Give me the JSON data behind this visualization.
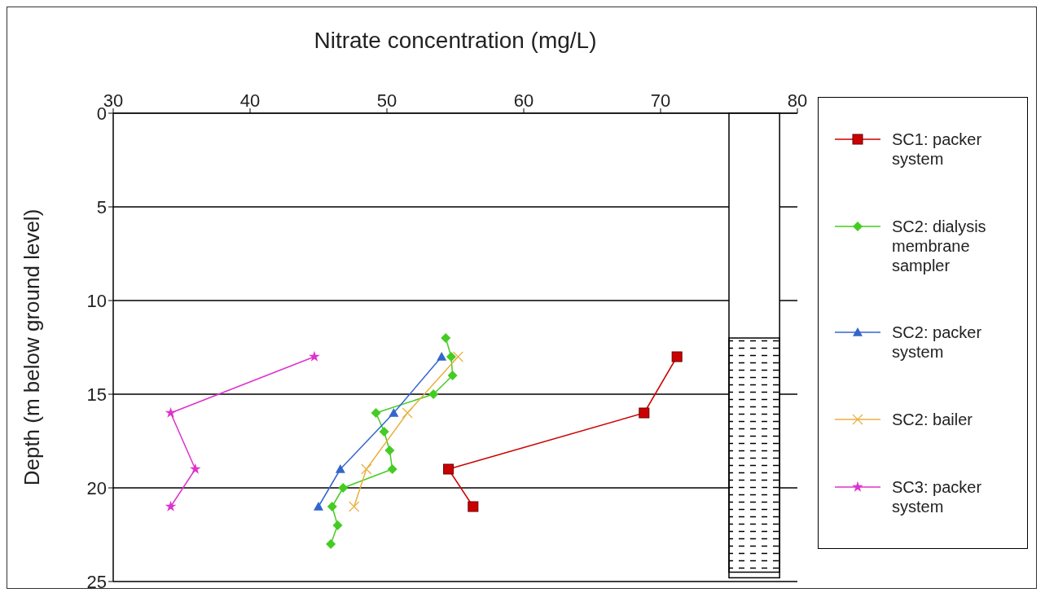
{
  "chart_data": {
    "type": "line",
    "xlabel": "Nitrate concentration (mg/L)",
    "ylabel": "Depth (m below ground level)",
    "xlim": [
      30,
      80
    ],
    "xticks": [
      30,
      40,
      50,
      60,
      70,
      80
    ],
    "ylim": [
      25,
      0
    ],
    "yticks": [
      0,
      5,
      10,
      15,
      20,
      25
    ],
    "grid": "y",
    "legend": "right",
    "bands": [
      {
        "axis": "y",
        "from": 0,
        "to": 24.8,
        "color": "#ffffff"
      },
      {
        "axis": "y",
        "from": 12,
        "to": 24.5,
        "color": "#000000"
      }
    ],
    "series": [
      {
        "name": "SC1: packer system",
        "color": "#cc0000",
        "marker": "square",
        "x": [
          71.2,
          68.8,
          54.5,
          56.3
        ],
        "values": [
          13,
          16,
          19,
          21
        ]
      },
      {
        "name": "SC2: dialysis membrane sampler",
        "color": "#44cc22",
        "marker": "diamond",
        "x": [
          54.3,
          54.7,
          54.8,
          53.4,
          49.2,
          49.8,
          50.2,
          50.4,
          46.8,
          46.0,
          46.4,
          45.9
        ],
        "values": [
          12,
          13,
          14,
          15,
          16,
          17,
          18,
          19,
          20,
          21,
          22,
          23
        ]
      },
      {
        "name": "SC2: packer system",
        "color": "#3366cc",
        "marker": "triangle",
        "x": [
          54.0,
          50.5,
          46.6,
          45.0
        ],
        "values": [
          13,
          16,
          19,
          21
        ]
      },
      {
        "name": "SC2: bailer",
        "color": "#e8b040",
        "marker": "cross",
        "x": [
          55.2,
          51.5,
          48.5,
          47.6
        ],
        "values": [
          13,
          16,
          19,
          21
        ]
      },
      {
        "name": "SC3: packer system",
        "color": "#dd33cc",
        "marker": "star",
        "x": [
          44.7,
          34.2,
          36.0,
          34.2
        ],
        "values": [
          13,
          16,
          19,
          21
        ]
      }
    ]
  }
}
